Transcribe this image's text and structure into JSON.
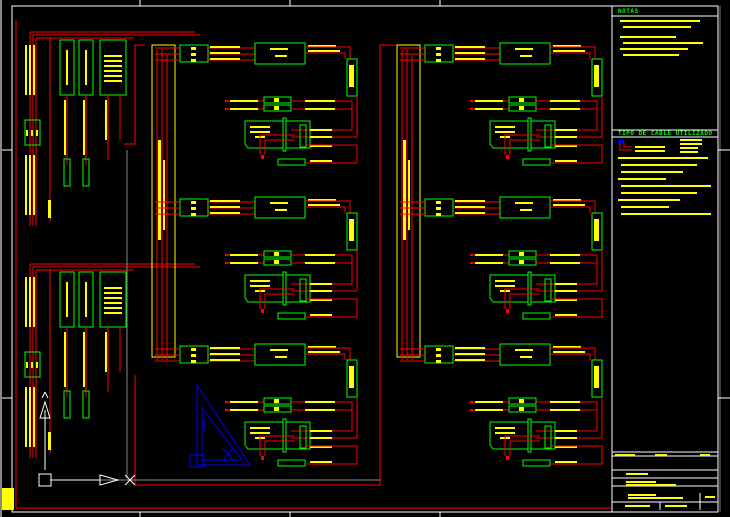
{
  "drawing": {
    "background": "#000000",
    "colors": {
      "wire": "#ff0000",
      "device": "#00ff00",
      "text": "#ffff00",
      "frame": "#ffffff",
      "ucs": "#0000ff"
    },
    "notes_heading": "NOTAS",
    "cable_heading": "TIPO DE CABLE UTILIZADO",
    "module_rows": 3,
    "module_columns": 2,
    "icons": [
      "ucs-icon",
      "view-triangle-icon"
    ]
  }
}
